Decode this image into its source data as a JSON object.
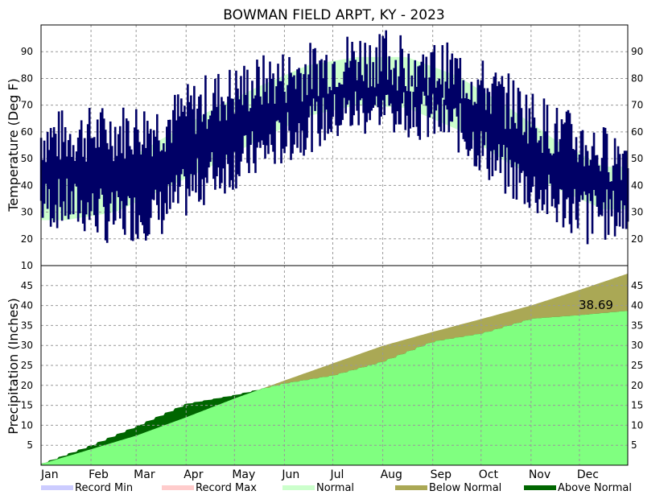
{
  "chart_data": [
    {
      "type": "line",
      "title": "BOWMAN FIELD ARPT, KY - 2023",
      "ylabel": "Temperature (Deg F)",
      "ylim": [
        10,
        100
      ],
      "yticks": [
        10,
        20,
        30,
        40,
        50,
        60,
        70,
        80,
        90
      ],
      "grid": true,
      "months": [
        "Jan",
        "Feb",
        "Mar",
        "Apr",
        "May",
        "Jun",
        "Jul",
        "Aug",
        "Sep",
        "Oct",
        "Nov",
        "Dec"
      ],
      "normal_band": {
        "name": "Normal",
        "color": "#ccffcc",
        "monthly_high": [
          43,
          47,
          57,
          68,
          77,
          85,
          88,
          88,
          81,
          70,
          57,
          47
        ],
        "monthly_low": [
          27,
          30,
          38,
          47,
          57,
          66,
          70,
          69,
          61,
          49,
          39,
          31
        ]
      },
      "series": [
        {
          "color": "#000066",
          "monthly_high": [
            58,
            60,
            62,
            72,
            78,
            83,
            88,
            86,
            82,
            72,
            60,
            52
          ],
          "monthly_low": [
            33,
            28,
            30,
            44,
            52,
            62,
            68,
            68,
            62,
            45,
            33,
            29
          ],
          "max": 98,
          "min": 18
        }
      ]
    },
    {
      "type": "area",
      "ylabel": "Precipitation (Inches)",
      "ylim": [
        0,
        50
      ],
      "yticks": [
        5,
        10,
        15,
        20,
        25,
        30,
        35,
        40,
        45
      ],
      "grid": true,
      "months": [
        "Jan",
        "Feb",
        "Mar",
        "Apr",
        "May",
        "Jun",
        "Jul",
        "Aug",
        "Sep",
        "Oct",
        "Nov",
        "Dec"
      ],
      "x_days": [
        1,
        32,
        60,
        91,
        121,
        152,
        182,
        213,
        244,
        274,
        305,
        335,
        365
      ],
      "normal": [
        0.3,
        4.0,
        7.4,
        12.0,
        16.7,
        21.2,
        25.5,
        29.9,
        33.4,
        36.6,
        40.0,
        43.9,
        48.0
      ],
      "observed": [
        0.4,
        5.0,
        9.8,
        15.4,
        17.6,
        20.5,
        22.5,
        26.0,
        31.0,
        33.0,
        36.7,
        37.6,
        38.69
      ],
      "observed_color": "#80ff80",
      "annotation": "38.69"
    }
  ],
  "legend": [
    {
      "label": "Record Min",
      "color": "#ccccff"
    },
    {
      "label": "Record Max",
      "color": "#ffcccc"
    },
    {
      "label": "Normal",
      "color": "#ccffcc"
    },
    {
      "label": "Below Normal",
      "color": "#aaa855"
    },
    {
      "label": "Above Normal",
      "color": "#006600"
    }
  ]
}
